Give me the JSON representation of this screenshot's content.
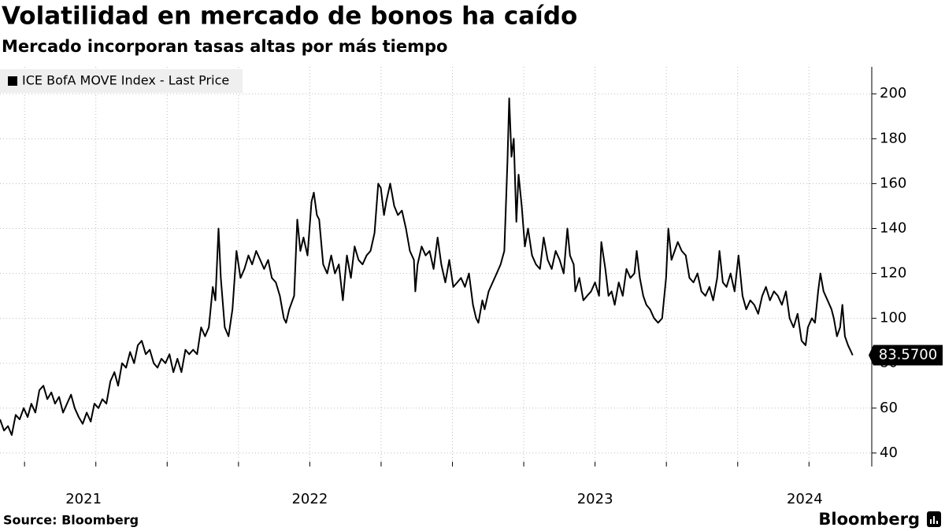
{
  "chart_data": {
    "type": "line",
    "title": "Volatilidad en mercado de bonos ha caído",
    "subtitle": "Mercado incorporan tasas altas por más tiempo",
    "source": "Source: Bloomberg",
    "brand": "Bloomberg",
    "last_label": "83.5700",
    "xlim": [
      2021.414,
      2024.47
    ],
    "xticks": [
      2021.5,
      2021.75,
      2022,
      2022.25,
      2022.5,
      2022.75,
      2023,
      2023.25,
      2023.5,
      2023.75,
      2024,
      2024.25
    ],
    "year_labels": [
      2021,
      2022,
      2023,
      2024
    ],
    "ylim": [
      34,
      212
    ],
    "yticks": [
      40,
      60,
      80,
      100,
      120,
      140,
      160,
      180,
      200
    ],
    "grid": true,
    "legend": "top-left",
    "x": [
      2021.414,
      2021.428,
      2021.442,
      2021.455,
      2021.469,
      2021.483,
      2021.497,
      2021.511,
      2021.524,
      2021.538,
      2021.552,
      2021.566,
      2021.58,
      2021.594,
      2021.607,
      2021.621,
      2021.635,
      2021.649,
      2021.663,
      2021.676,
      2021.69,
      2021.704,
      2021.718,
      2021.732,
      2021.745,
      2021.759,
      2021.773,
      2021.787,
      2021.801,
      2021.815,
      2021.828,
      2021.842,
      2021.856,
      2021.87,
      2021.884,
      2021.897,
      2021.911,
      2021.925,
      2021.939,
      2021.953,
      2021.966,
      2021.98,
      2021.994,
      2022.008,
      2022.022,
      2022.036,
      2022.05,
      2022.064,
      2022.077,
      2022.091,
      2022.105,
      2022.119,
      2022.133,
      2022.146,
      2022.16,
      2022.169,
      2022.18,
      2022.188,
      2022.202,
      2022.215,
      2022.229,
      2022.243,
      2022.257,
      2022.271,
      2022.285,
      2022.298,
      2022.312,
      2022.326,
      2022.34,
      2022.354,
      2022.367,
      2022.381,
      2022.395,
      2022.409,
      2022.417,
      2022.428,
      2022.445,
      2022.456,
      2022.467,
      2022.478,
      2022.492,
      2022.506,
      2022.514,
      2022.525,
      2022.533,
      2022.547,
      2022.561,
      2022.575,
      2022.588,
      2022.602,
      2022.616,
      2022.63,
      2022.644,
      2022.657,
      2022.671,
      2022.685,
      2022.699,
      2022.713,
      2022.727,
      2022.74,
      2022.749,
      2022.76,
      2022.768,
      2022.782,
      2022.796,
      2022.809,
      2022.823,
      2022.837,
      2022.851,
      2022.865,
      2022.87,
      2022.878,
      2022.892,
      2022.906,
      2022.92,
      2022.934,
      2022.948,
      2022.961,
      2022.975,
      2022.989,
      2023.003,
      2023.017,
      2023.03,
      2023.044,
      2023.058,
      2023.072,
      2023.083,
      2023.091,
      2023.105,
      2023.113,
      2023.127,
      2023.141,
      2023.155,
      2023.169,
      2023.182,
      2023.193,
      2023.199,
      2023.207,
      2023.215,
      2023.224,
      2023.232,
      2023.243,
      2023.254,
      2023.265,
      2023.279,
      2023.293,
      2023.307,
      2023.32,
      2023.334,
      2023.348,
      2023.362,
      2023.376,
      2023.39,
      2023.403,
      2023.412,
      2023.425,
      2023.431,
      2023.445,
      2023.459,
      2023.472,
      2023.486,
      2023.5,
      2023.514,
      2023.522,
      2023.536,
      2023.547,
      2023.558,
      2023.569,
      2023.583,
      2023.597,
      2023.61,
      2023.624,
      2023.638,
      2023.646,
      2023.657,
      2023.669,
      2023.68,
      2023.693,
      2023.707,
      2023.721,
      2023.735,
      2023.749,
      2023.757,
      2023.768,
      2023.779,
      2023.79,
      2023.804,
      2023.818,
      2023.831,
      2023.845,
      2023.859,
      2023.873,
      2023.887,
      2023.901,
      2023.914,
      2023.928,
      2023.936,
      2023.948,
      2023.961,
      2023.975,
      2023.989,
      2024.003,
      2024.017,
      2024.03,
      2024.044,
      2024.058,
      2024.072,
      2024.086,
      2024.099,
      2024.113,
      2024.127,
      2024.141,
      2024.155,
      2024.169,
      2024.182,
      2024.196,
      2024.21,
      2024.224,
      2024.238,
      2024.246,
      2024.26,
      2024.271,
      2024.282,
      2024.29,
      2024.301,
      2024.315,
      2024.329,
      2024.337,
      2024.348,
      2024.359,
      2024.367,
      2024.376,
      2024.387,
      2024.398,
      2024.403
    ],
    "series": [
      {
        "name": "ICE BofA MOVE Index - Last Price",
        "color": "#000000",
        "values": [
          55,
          50,
          52,
          48,
          57,
          55,
          60,
          56,
          62,
          58,
          68,
          70,
          64,
          67,
          62,
          65,
          58,
          62,
          66,
          60,
          56,
          53,
          58,
          54,
          62,
          60,
          64,
          62,
          72,
          76,
          70,
          80,
          78,
          85,
          80,
          88,
          90,
          84,
          86,
          80,
          78,
          82,
          80,
          84,
          76,
          82,
          76,
          86,
          84,
          86,
          84,
          96,
          92,
          96,
          114,
          108,
          140,
          118,
          96,
          92,
          104,
          130,
          118,
          122,
          128,
          124,
          130,
          126,
          122,
          126,
          118,
          116,
          110,
          100,
          98,
          104,
          110,
          144,
          130,
          136,
          128,
          152,
          156,
          146,
          144,
          124,
          120,
          128,
          120,
          124,
          108,
          128,
          118,
          132,
          126,
          124,
          128,
          130,
          138,
          160,
          158,
          146,
          152,
          160,
          150,
          146,
          148,
          140,
          130,
          126,
          112,
          124,
          132,
          128,
          130,
          122,
          136,
          124,
          116,
          126,
          114,
          116,
          118,
          114,
          120,
          106,
          100,
          98,
          108,
          104,
          112,
          116,
          120,
          124,
          130,
          170,
          198,
          172,
          180,
          143,
          164,
          150,
          132,
          140,
          128,
          124,
          122,
          136,
          126,
          122,
          130,
          126,
          120,
          140,
          128,
          124,
          112,
          118,
          108,
          110,
          112,
          116,
          110,
          134,
          122,
          110,
          112,
          106,
          116,
          110,
          122,
          118,
          120,
          130,
          118,
          110,
          106,
          104,
          100,
          98,
          100,
          118,
          140,
          126,
          130,
          134,
          130,
          128,
          118,
          116,
          120,
          112,
          110,
          114,
          108,
          118,
          130,
          116,
          114,
          120,
          112,
          128,
          110,
          104,
          108,
          106,
          102,
          110,
          114,
          108,
          112,
          110,
          106,
          112,
          100,
          96,
          102,
          90,
          88,
          96,
          100,
          98,
          112,
          120,
          112,
          108,
          104,
          100,
          92,
          96,
          106,
          92,
          88,
          85,
          83.57
        ]
      }
    ]
  }
}
